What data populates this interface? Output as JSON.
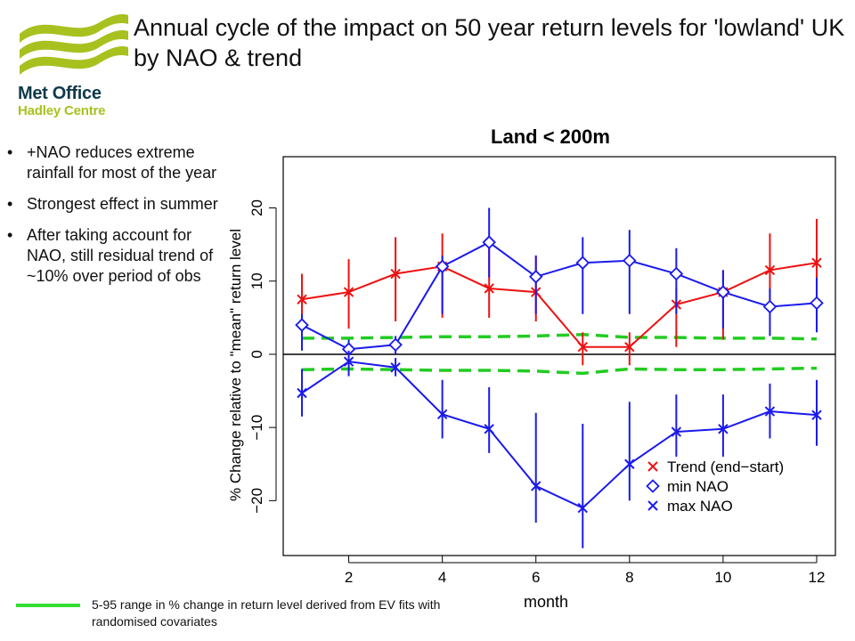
{
  "slide": {
    "title": "Annual cycle of the impact on 50 year return levels for 'lowland' UK by NAO & trend",
    "logo_line1": "Met Office",
    "logo_line2": "Hadley Centre",
    "bullets": [
      "+NAO reduces extreme rainfall for most of the year",
      "Strongest effect in summer",
      "After taking account for NAO, still residual trend of ~10% over period of obs"
    ],
    "footnote": "5-95 range in % change in return level derived from EV fits with randomised covariates",
    "footnote_color": "#33dd33"
  },
  "chart_data": {
    "type": "line",
    "title": "Land < 200m",
    "xlabel": "month",
    "ylabel": "% Change relative to \"mean\" return level",
    "xlim": [
      0.6,
      12.4
    ],
    "ylim": [
      -27.5,
      27
    ],
    "xticks": [
      2,
      4,
      6,
      8,
      10,
      12
    ],
    "yticks": [
      -20,
      -10,
      0,
      10,
      20
    ],
    "zero_line": true,
    "legend_position": "bottom-right",
    "x": [
      1,
      2,
      3,
      4,
      5,
      6,
      7,
      8,
      9,
      10,
      11,
      12
    ],
    "series": [
      {
        "name": "Trend (end−start)",
        "color": "#ee1111",
        "marker": "x",
        "values": [
          7.5,
          8.5,
          11,
          12,
          9,
          8.5,
          1,
          1,
          6.8,
          8.5,
          11.5,
          12.5
        ],
        "lower": [
          4.5,
          3.5,
          4.5,
          5,
          5,
          4.5,
          -1.5,
          -1.5,
          1,
          2,
          5.5,
          5
        ],
        "upper": [
          11,
          13,
          16,
          16.5,
          14.5,
          13.5,
          3,
          3,
          9,
          11.5,
          16.5,
          18.5
        ]
      },
      {
        "name": "min NAO",
        "color": "#1a1aee",
        "marker": "diamond",
        "values": [
          4,
          0.7,
          1.3,
          12,
          15.3,
          10.6,
          12.5,
          12.8,
          11,
          8.5,
          6.5,
          7
        ],
        "lower": [
          0.5,
          -0.5,
          0,
          5.5,
          10.5,
          5.5,
          5.5,
          5.5,
          5.5,
          3.5,
          2.5,
          3
        ],
        "upper": [
          5.5,
          2,
          2.5,
          13.5,
          20,
          13.5,
          16,
          17,
          14.5,
          11.5,
          9,
          10.5
        ]
      },
      {
        "name": "max NAO",
        "color": "#1a1aee",
        "marker": "x",
        "values": [
          -5.3,
          -1,
          -1.8,
          -8.2,
          -10.2,
          -18,
          -21,
          -15,
          -10.6,
          -10.2,
          -7.8,
          -8.3
        ],
        "lower": [
          -8.5,
          -3,
          -3,
          -11.5,
          -13.5,
          -23,
          -26.5,
          -20,
          -14,
          -14,
          -11.5,
          -12.5
        ],
        "upper": [
          -2,
          0.5,
          -0.5,
          -3.5,
          -4.5,
          -8,
          -9.5,
          -6.5,
          -5.5,
          -5.5,
          -4,
          -3.5
        ]
      }
    ],
    "range_bands": {
      "color": "#22cc22",
      "style": "dashed",
      "upper": [
        2.2,
        2.2,
        2.3,
        2.4,
        2.4,
        2.5,
        2.7,
        2.3,
        2.3,
        2.2,
        2.2,
        2.1
      ],
      "lower": [
        -2.1,
        -2.0,
        -2.1,
        -2.2,
        -2.2,
        -2.3,
        -2.6,
        -2.0,
        -2.1,
        -2.1,
        -2.0,
        -1.9
      ]
    }
  }
}
